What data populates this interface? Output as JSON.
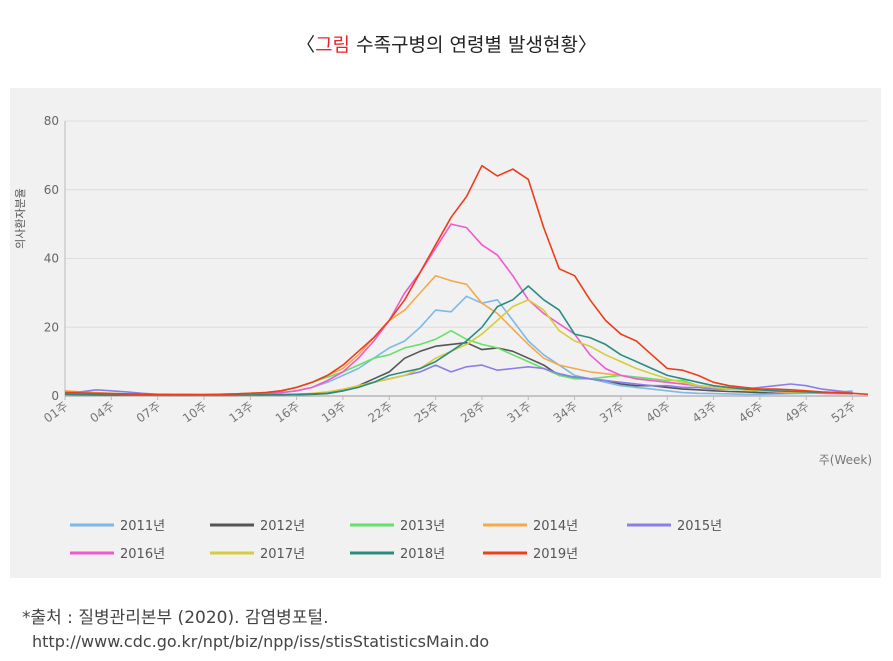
{
  "header": {
    "title_open": "〈",
    "title_highlight": "그림",
    "title_rest": " 수족구병의 연령별 발생현황〉"
  },
  "source": {
    "line1": "*출처 : 질병관리본부 (2020). 감염병포털.",
    "line2": "http://www.cdc.go.kr/npt/biz/npp/iss/stisStatisticsMain.do"
  },
  "chart_data": {
    "type": "line",
    "title": "수족구병의 연령별 발생현황",
    "ylabel": "의사환자분율",
    "xlabel": "주(Week)",
    "ylim": [
      0,
      80
    ],
    "yticks": [
      0,
      20,
      40,
      60,
      80
    ],
    "xtick_labels": [
      "01주",
      "04주",
      "07주",
      "10주",
      "13주",
      "16주",
      "19주",
      "22주",
      "25주",
      "28주",
      "31주",
      "34주",
      "37주",
      "40주",
      "43주",
      "46주",
      "49주",
      "52주"
    ],
    "xtick_weeks": [
      1,
      4,
      7,
      10,
      13,
      16,
      19,
      22,
      25,
      28,
      31,
      34,
      37,
      40,
      43,
      46,
      49,
      52
    ],
    "x": [
      1,
      2,
      3,
      4,
      5,
      6,
      7,
      8,
      9,
      10,
      11,
      12,
      13,
      14,
      15,
      16,
      17,
      18,
      19,
      20,
      21,
      22,
      23,
      24,
      25,
      26,
      27,
      28,
      29,
      30,
      31,
      32,
      33,
      34,
      35,
      36,
      37,
      38,
      39,
      40,
      41,
      42,
      43,
      44,
      45,
      46,
      47,
      48,
      49,
      50,
      51,
      52,
      53
    ],
    "series": [
      {
        "name": "2011년",
        "color": "#7db9e8",
        "values": [
          1.2,
          1.0,
          0.8,
          0.7,
          0.6,
          0.5,
          0.5,
          0.4,
          0.4,
          0.3,
          0.4,
          0.5,
          0.6,
          0.8,
          1.0,
          1.5,
          2.5,
          4.0,
          6.0,
          8.0,
          11.0,
          14.0,
          16.0,
          20.0,
          25.0,
          24.5,
          29.0,
          27.0,
          28.0,
          22.0,
          16.0,
          12.0,
          9.0,
          6.0,
          5.0,
          4.0,
          3.0,
          2.5,
          2.0,
          1.5,
          1.0,
          0.8,
          0.7,
          0.6,
          0.5,
          0.5,
          0.6,
          0.7,
          0.8,
          0.9,
          1.0,
          1.5,
          null
        ]
      },
      {
        "name": "2012년",
        "color": "#555555",
        "values": [
          0.5,
          0.4,
          0.3,
          0.3,
          0.3,
          0.3,
          0.2,
          0.2,
          0.2,
          0.2,
          0.2,
          0.2,
          0.3,
          0.3,
          0.3,
          0.4,
          0.5,
          0.7,
          1.5,
          3.0,
          5.0,
          7.0,
          11.0,
          13.0,
          14.5,
          15.0,
          15.5,
          13.5,
          14.0,
          13.0,
          11.0,
          9.0,
          6.0,
          5.5,
          5.0,
          4.5,
          3.5,
          3.0,
          3.0,
          2.5,
          2.0,
          1.8,
          1.5,
          1.3,
          1.2,
          1.0,
          1.0,
          1.0,
          1.0,
          0.9,
          0.8,
          0.8,
          null
        ]
      },
      {
        "name": "2013년",
        "color": "#66e06a",
        "values": [
          0.8,
          0.7,
          0.6,
          0.5,
          0.5,
          0.5,
          0.4,
          0.4,
          0.4,
          0.4,
          0.5,
          0.6,
          0.8,
          1.0,
          1.5,
          2.5,
          4.0,
          5.5,
          7.0,
          9.0,
          11.0,
          12.0,
          14.0,
          15.0,
          16.5,
          19.0,
          16.5,
          15.0,
          14.0,
          12.0,
          10.0,
          8.0,
          6.0,
          5.0,
          5.0,
          5.5,
          6.0,
          5.5,
          5.0,
          4.5,
          4.5,
          3.0,
          2.5,
          2.0,
          1.8,
          1.5,
          1.2,
          1.0,
          1.0,
          1.0,
          0.9,
          0.8,
          null
        ]
      },
      {
        "name": "2014년",
        "color": "#f5a94a",
        "values": [
          1.5,
          1.2,
          1.0,
          0.8,
          0.6,
          0.5,
          0.5,
          0.4,
          0.4,
          0.4,
          0.5,
          0.6,
          0.8,
          1.0,
          1.5,
          2.5,
          4.0,
          6.0,
          8.0,
          12.0,
          17.0,
          22.0,
          25.0,
          30.0,
          35.0,
          33.5,
          32.5,
          27.0,
          24.0,
          19.5,
          15.0,
          11.0,
          9.0,
          8.0,
          7.0,
          6.5,
          6.0,
          5.0,
          4.5,
          4.0,
          3.5,
          3.0,
          2.5,
          2.0,
          2.0,
          1.8,
          1.5,
          1.3,
          1.0,
          0.9,
          0.8,
          0.7,
          null
        ]
      },
      {
        "name": "2015년",
        "color": "#8a7fe8",
        "values": [
          1.0,
          1.2,
          1.8,
          1.5,
          1.2,
          0.8,
          0.5,
          0.4,
          0.4,
          0.3,
          0.3,
          0.3,
          0.3,
          0.3,
          0.3,
          0.4,
          0.6,
          1.0,
          1.5,
          3.0,
          4.0,
          5.0,
          6.0,
          7.0,
          9.0,
          7.0,
          8.5,
          9.0,
          7.5,
          8.0,
          8.5,
          8.0,
          6.5,
          5.5,
          5.0,
          4.5,
          4.0,
          3.5,
          3.0,
          3.0,
          2.5,
          2.5,
          2.0,
          2.0,
          2.0,
          2.5,
          3.0,
          3.5,
          3.0,
          2.0,
          1.5,
          1.0,
          null
        ]
      },
      {
        "name": "2016년",
        "color": "#f05ad0",
        "values": [
          0.8,
          0.7,
          0.6,
          0.5,
          0.4,
          0.4,
          0.3,
          0.3,
          0.3,
          0.3,
          0.3,
          0.4,
          0.5,
          0.7,
          1.0,
          1.5,
          2.5,
          4.5,
          7.0,
          11.0,
          16.0,
          22.0,
          30.0,
          36.0,
          43.0,
          50.0,
          49.0,
          44.0,
          41.0,
          35.0,
          28.0,
          24.0,
          21.0,
          18.0,
          12.0,
          8.0,
          6.0,
          5.0,
          4.5,
          4.0,
          3.5,
          3.0,
          2.5,
          2.0,
          1.8,
          1.5,
          1.2,
          1.0,
          0.9,
          0.8,
          0.7,
          0.6,
          null
        ]
      },
      {
        "name": "2017년",
        "color": "#d8cc3c",
        "values": [
          0.6,
          0.5,
          0.4,
          0.4,
          0.3,
          0.3,
          0.3,
          0.3,
          0.3,
          0.3,
          0.3,
          0.3,
          0.3,
          0.4,
          0.4,
          0.5,
          0.8,
          1.2,
          2.0,
          3.0,
          4.0,
          5.0,
          6.0,
          8.0,
          11.0,
          13.0,
          15.0,
          18.0,
          22.0,
          26.0,
          28.0,
          25.0,
          19.0,
          16.0,
          14.5,
          12.0,
          10.0,
          8.0,
          6.5,
          5.0,
          4.0,
          3.0,
          2.5,
          2.0,
          1.8,
          1.5,
          1.3,
          1.1,
          1.0,
          0.9,
          0.8,
          0.7,
          null
        ]
      },
      {
        "name": "2018년",
        "color": "#2a8c80",
        "values": [
          0.5,
          0.4,
          0.4,
          0.3,
          0.3,
          0.3,
          0.3,
          0.3,
          0.3,
          0.3,
          0.3,
          0.3,
          0.3,
          0.4,
          0.4,
          0.5,
          0.6,
          0.8,
          1.5,
          2.5,
          4.0,
          6.0,
          7.0,
          8.0,
          10.0,
          13.0,
          16.0,
          20.0,
          26.0,
          28.0,
          32.0,
          28.0,
          25.0,
          18.0,
          17.0,
          15.0,
          12.0,
          10.0,
          8.0,
          6.0,
          5.0,
          4.0,
          3.0,
          2.5,
          2.0,
          1.8,
          1.5,
          1.3,
          1.2,
          1.0,
          0.9,
          0.8,
          null
        ]
      },
      {
        "name": "2019년",
        "color": "#ee3d1a",
        "values": [
          1.0,
          0.9,
          0.8,
          0.7,
          0.6,
          0.5,
          0.5,
          0.4,
          0.4,
          0.4,
          0.5,
          0.6,
          0.8,
          1.0,
          1.5,
          2.5,
          4.0,
          6.0,
          9.0,
          13.0,
          17.0,
          22.0,
          28.0,
          36.0,
          44.0,
          52.0,
          58.0,
          67.0,
          64.0,
          66.0,
          63.0,
          49.0,
          37.0,
          35.0,
          28.0,
          22.0,
          18.0,
          16.0,
          12.0,
          8.0,
          7.5,
          6.0,
          4.0,
          3.0,
          2.5,
          2.0,
          2.0,
          1.8,
          1.5,
          1.2,
          1.0,
          0.8,
          0.5
        ]
      }
    ]
  }
}
